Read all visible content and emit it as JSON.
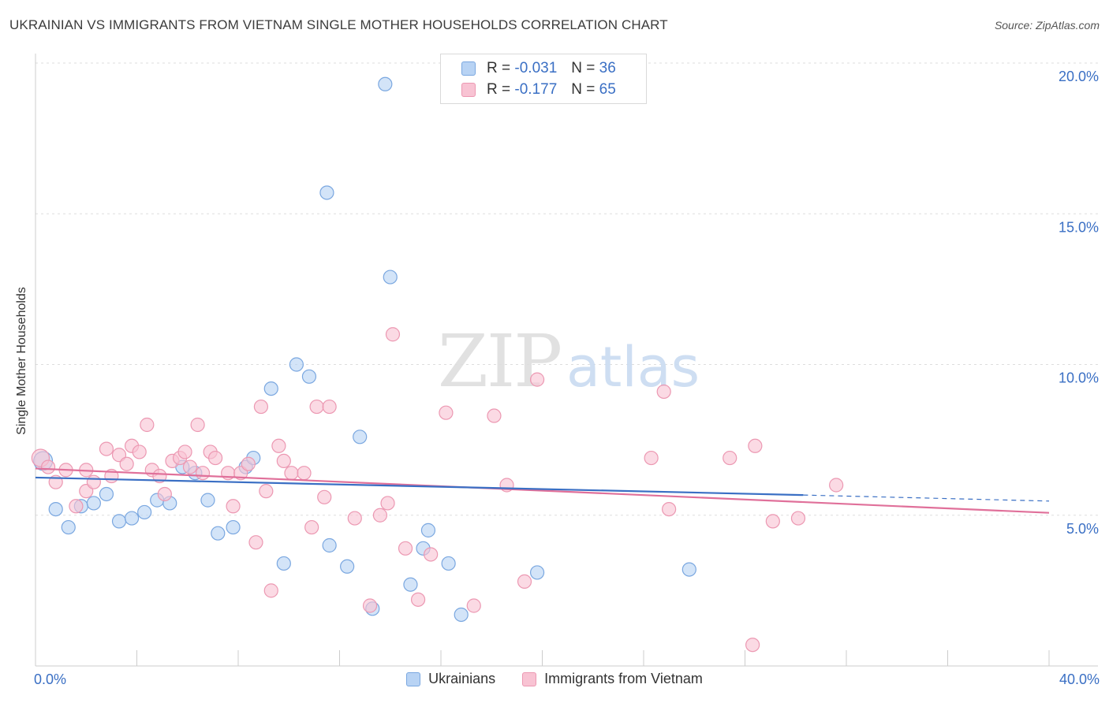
{
  "title": "UKRAINIAN VS IMMIGRANTS FROM VIETNAM SINGLE MOTHER HOUSEHOLDS CORRELATION CHART",
  "source": "Source: ZipAtlas.com",
  "watermark": {
    "zip": "ZIP",
    "atlas": "atlas"
  },
  "legend_top": {
    "rows": [
      {
        "r_label": "R =",
        "r_value": "-0.031",
        "n_label": "N =",
        "n_value": "36"
      },
      {
        "r_label": "R =",
        "r_value": "-0.177",
        "n_label": "N =",
        "n_value": "65"
      }
    ]
  },
  "colors": {
    "blue_fill": "#b8d3f4",
    "blue_stroke": "#7aa7e0",
    "blue_line": "#3a6fc4",
    "pink_fill": "#f8c3d3",
    "pink_stroke": "#ec98b2",
    "pink_line": "#e0709a",
    "tick_text": "#3a6fc4",
    "grid": "#dddddd"
  },
  "chart_data": {
    "type": "scatter",
    "title": "UKRAINIAN VS IMMIGRANTS FROM VIETNAM SINGLE MOTHER HOUSEHOLDS CORRELATION CHART",
    "xlabel": "",
    "ylabel": "Single Mother Households",
    "xlim": [
      0,
      40
    ],
    "ylim": [
      0,
      20.5
    ],
    "x_tick_labels": [
      "0.0%",
      "40.0%"
    ],
    "y_ticks": [
      5,
      10,
      15,
      20
    ],
    "y_tick_labels": [
      "5.0%",
      "10.0%",
      "15.0%",
      "20.0%"
    ],
    "grid": true,
    "legend_position": "bottom-center",
    "series": [
      {
        "name": "Ukrainians",
        "color": "#b8d3f4",
        "trend": {
          "x": [
            0,
            30.3
          ],
          "y": [
            6.25,
            5.67
          ],
          "dashed_to": [
            40,
            5.47
          ]
        },
        "points": [
          [
            0.3,
            6.8,
            1.4
          ],
          [
            0.8,
            5.2,
            1
          ],
          [
            1.3,
            4.6,
            1
          ],
          [
            1.8,
            5.3,
            1
          ],
          [
            2.3,
            5.4,
            1
          ],
          [
            2.8,
            5.7,
            1
          ],
          [
            3.3,
            4.8,
            1
          ],
          [
            3.8,
            4.9,
            1
          ],
          [
            4.3,
            5.1,
            1
          ],
          [
            4.8,
            5.5,
            1
          ],
          [
            5.3,
            5.4,
            1
          ],
          [
            5.8,
            6.6,
            1
          ],
          [
            6.3,
            6.4,
            1
          ],
          [
            6.8,
            5.5,
            1
          ],
          [
            7.2,
            4.4,
            1
          ],
          [
            7.8,
            4.6,
            1
          ],
          [
            8.3,
            6.6,
            1
          ],
          [
            8.6,
            6.9,
            1
          ],
          [
            9.3,
            9.2,
            1
          ],
          [
            9.8,
            3.4,
            1
          ],
          [
            10.3,
            10.0,
            1
          ],
          [
            10.8,
            9.6,
            1
          ],
          [
            11.5,
            15.7,
            1
          ],
          [
            11.6,
            4.0,
            1
          ],
          [
            12.3,
            3.3,
            1
          ],
          [
            12.8,
            7.6,
            1
          ],
          [
            13.3,
            1.9,
            1
          ],
          [
            13.8,
            19.3,
            1
          ],
          [
            14.0,
            12.9,
            1
          ],
          [
            14.8,
            2.7,
            1
          ],
          [
            15.3,
            3.9,
            1
          ],
          [
            15.5,
            4.5,
            1
          ],
          [
            16.3,
            3.4,
            1
          ],
          [
            16.8,
            1.7,
            1
          ],
          [
            19.8,
            3.1,
            1
          ],
          [
            25.8,
            3.2,
            1
          ]
        ]
      },
      {
        "name": "Immigrants from Vietnam",
        "color": "#f8c3d3",
        "trend": {
          "x": [
            0,
            40
          ],
          "y": [
            6.55,
            5.08
          ]
        },
        "points": [
          [
            0.2,
            6.9,
            1.3
          ],
          [
            0.5,
            6.6,
            1
          ],
          [
            0.8,
            6.1,
            1
          ],
          [
            1.2,
            6.5,
            1
          ],
          [
            1.6,
            5.3,
            1
          ],
          [
            2.0,
            6.5,
            1
          ],
          [
            2.0,
            5.8,
            1
          ],
          [
            2.3,
            6.1,
            1
          ],
          [
            2.8,
            7.2,
            1
          ],
          [
            3.0,
            6.3,
            1
          ],
          [
            3.3,
            7.0,
            1
          ],
          [
            3.6,
            6.7,
            1
          ],
          [
            3.8,
            7.3,
            1
          ],
          [
            4.1,
            7.1,
            1
          ],
          [
            4.4,
            8.0,
            1
          ],
          [
            4.6,
            6.5,
            1
          ],
          [
            4.9,
            6.3,
            1
          ],
          [
            5.1,
            5.7,
            1
          ],
          [
            5.4,
            6.8,
            1
          ],
          [
            5.7,
            6.9,
            1
          ],
          [
            5.9,
            7.1,
            1
          ],
          [
            6.1,
            6.6,
            1
          ],
          [
            6.4,
            8.0,
            1
          ],
          [
            6.6,
            6.4,
            1
          ],
          [
            6.9,
            7.1,
            1
          ],
          [
            7.1,
            6.9,
            1
          ],
          [
            7.6,
            6.4,
            1
          ],
          [
            7.8,
            5.3,
            1
          ],
          [
            8.1,
            6.4,
            1
          ],
          [
            8.4,
            6.7,
            1
          ],
          [
            8.7,
            4.1,
            1
          ],
          [
            8.9,
            8.6,
            1
          ],
          [
            9.1,
            5.8,
            1
          ],
          [
            9.3,
            2.5,
            1
          ],
          [
            9.6,
            7.3,
            1
          ],
          [
            9.8,
            6.8,
            1
          ],
          [
            10.1,
            6.4,
            1
          ],
          [
            10.6,
            6.4,
            1
          ],
          [
            10.9,
            4.6,
            1
          ],
          [
            11.1,
            8.6,
            1
          ],
          [
            11.4,
            5.6,
            1
          ],
          [
            11.6,
            8.6,
            1
          ],
          [
            12.6,
            4.9,
            1
          ],
          [
            13.2,
            2.0,
            1
          ],
          [
            13.6,
            5.0,
            1
          ],
          [
            13.9,
            5.4,
            1
          ],
          [
            14.1,
            11.0,
            1
          ],
          [
            14.6,
            3.9,
            1
          ],
          [
            15.1,
            2.2,
            1
          ],
          [
            15.6,
            3.7,
            1
          ],
          [
            16.2,
            8.4,
            1
          ],
          [
            17.3,
            2.0,
            1
          ],
          [
            18.1,
            8.3,
            1
          ],
          [
            18.6,
            6.0,
            1
          ],
          [
            19.3,
            2.8,
            1
          ],
          [
            19.8,
            9.5,
            1
          ],
          [
            24.3,
            6.9,
            1
          ],
          [
            24.8,
            9.1,
            1
          ],
          [
            25.0,
            5.2,
            1
          ],
          [
            27.4,
            6.9,
            1
          ],
          [
            28.3,
            0.7,
            1
          ],
          [
            28.4,
            7.3,
            1
          ],
          [
            29.1,
            4.8,
            1
          ],
          [
            30.1,
            4.9,
            1
          ],
          [
            31.6,
            6.0,
            1
          ]
        ]
      }
    ]
  }
}
